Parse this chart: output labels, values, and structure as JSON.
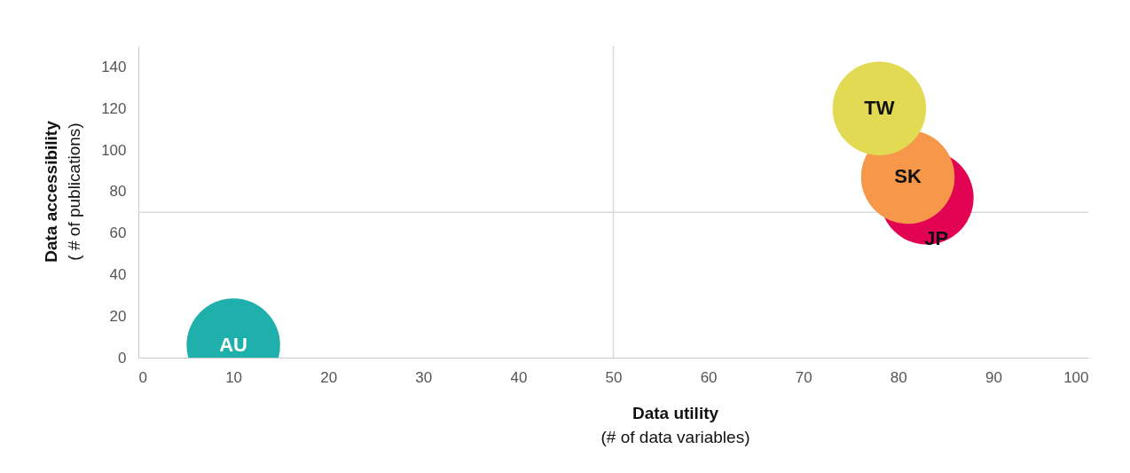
{
  "chart_data": {
    "type": "bubble",
    "xlabel": "Data utility\n(# of data variables)",
    "ylabel": "Data accessibility\n( # of publications)",
    "xlim": [
      0,
      100
    ],
    "xticks": [
      0,
      10,
      20,
      30,
      40,
      50,
      60,
      70,
      80,
      90,
      100
    ],
    "ylim": [
      0,
      150
    ],
    "yticks": [
      0,
      20,
      40,
      60,
      80,
      100,
      120,
      140
    ],
    "grid": false,
    "ref_lines": [
      {
        "axis": "x",
        "value": 50,
        "color": "#d9d9d9"
      },
      {
        "axis": "y",
        "value": 70,
        "color": "#d9d9d9"
      }
    ],
    "series": [
      {
        "name": "AU",
        "color": "#1fb0ab",
        "x": [
          10
        ],
        "values": [
          6
        ],
        "sizes": [
          1
        ]
      },
      {
        "name": "JP",
        "color": "#e30353",
        "x": [
          83
        ],
        "values": [
          77
        ],
        "sizes": [
          1
        ]
      },
      {
        "name": "SK",
        "color": "#f7974a",
        "x": [
          81
        ],
        "values": [
          87
        ],
        "sizes": [
          1
        ]
      },
      {
        "name": "TW",
        "color": "#e2da52",
        "x": [
          78
        ],
        "values": [
          120
        ],
        "sizes": [
          1
        ]
      }
    ]
  }
}
